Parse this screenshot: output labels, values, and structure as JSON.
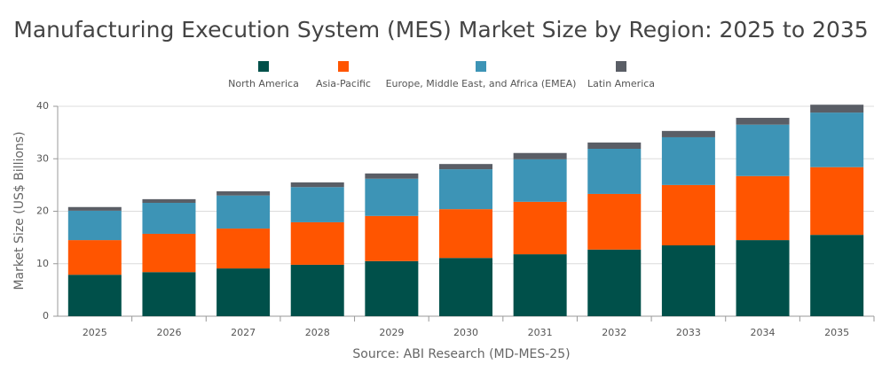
{
  "chart_data": {
    "type": "stacked-bar",
    "title": "Manufacturing Execution System (MES) Market Size by Region: 2025 to 2035",
    "y_label": "Market Size (US$ Billions)",
    "caption": "Source: ABI Research (MD-MES-25)",
    "categories": [
      "2025",
      "2026",
      "2027",
      "2028",
      "2029",
      "2030",
      "2031",
      "2032",
      "2033",
      "2034",
      "2035"
    ],
    "series": [
      {
        "name": "North America",
        "color": "#00504a",
        "values": [
          7.9,
          8.4,
          9.1,
          9.8,
          10.5,
          11.1,
          11.8,
          12.7,
          13.5,
          14.5,
          15.5
        ]
      },
      {
        "name": "Asia-Pacific",
        "color": "#ff5500",
        "values": [
          6.6,
          7.3,
          7.6,
          8.1,
          8.6,
          9.3,
          10.0,
          10.6,
          11.5,
          12.2,
          12.9
        ]
      },
      {
        "name": "Europe, Middle East, and Africa (EMEA)",
        "color": "#3d94b6",
        "values": [
          5.6,
          5.9,
          6.3,
          6.7,
          7.1,
          7.6,
          8.1,
          8.6,
          9.1,
          9.8,
          10.4
        ]
      },
      {
        "name": "Latin America",
        "color": "#5a5e66",
        "values": [
          0.7,
          0.7,
          0.8,
          0.9,
          1.0,
          1.0,
          1.2,
          1.2,
          1.2,
          1.3,
          1.5
        ]
      }
    ],
    "ylim": [
      0,
      40
    ],
    "yticks": [
      0,
      10,
      20,
      30,
      40
    ],
    "grid": true
  }
}
